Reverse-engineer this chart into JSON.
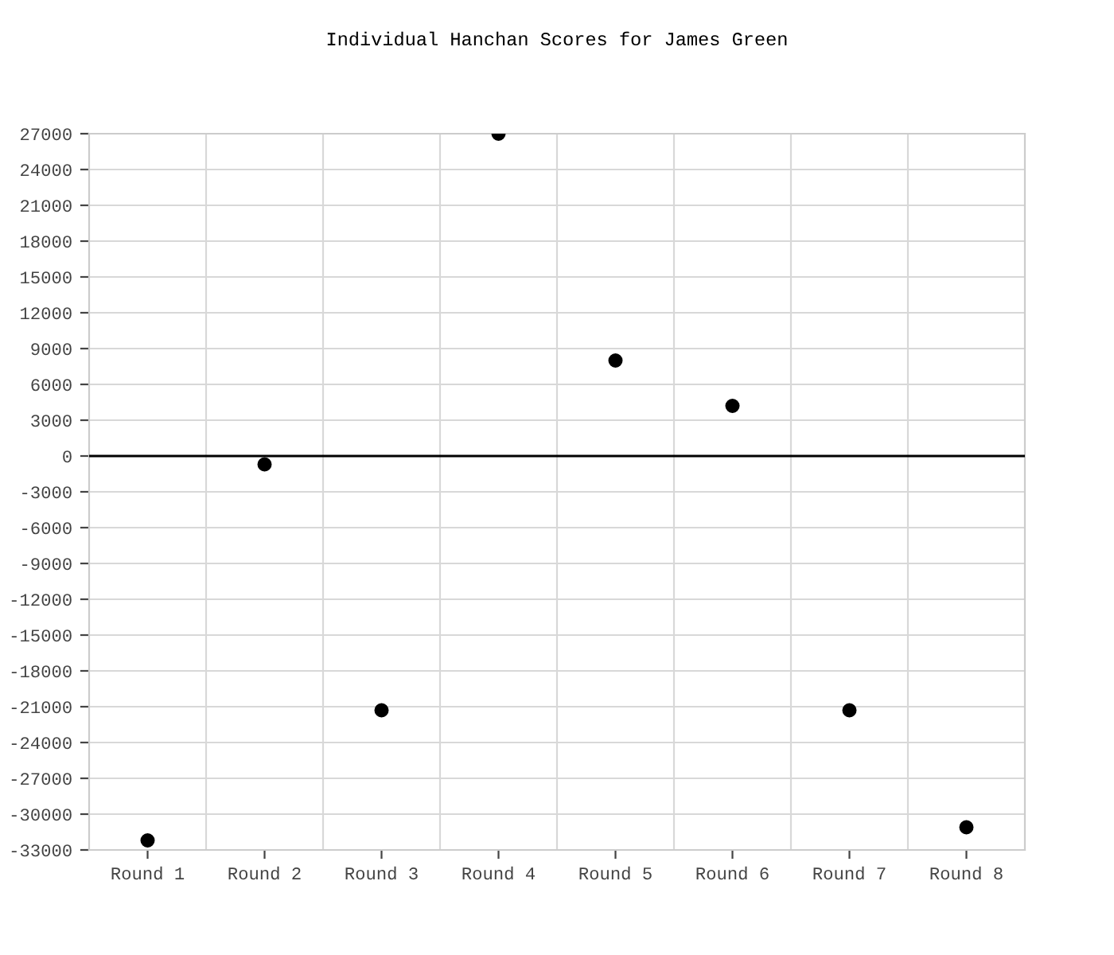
{
  "chart_data": {
    "type": "scatter",
    "title": "Individual Hanchan Scores for James Green",
    "categories": [
      "Round 1",
      "Round 2",
      "Round 3",
      "Round 4",
      "Round 5",
      "Round 6",
      "Round 7",
      "Round 8"
    ],
    "series": [
      {
        "color": "#000000",
        "values": [
          -32200,
          -700,
          -21300,
          27000,
          8000,
          4200,
          -21300,
          -31100
        ]
      }
    ],
    "ylim": [
      -33000,
      27000
    ],
    "yticks": [
      -33000,
      -30000,
      -27000,
      -24000,
      -21000,
      -18000,
      -15000,
      -12000,
      -9000,
      -6000,
      -3000,
      0,
      3000,
      6000,
      9000,
      12000,
      15000,
      18000,
      21000,
      24000,
      27000
    ],
    "ref_lines": [
      {
        "axis": "y",
        "value": 0,
        "color": "#000000"
      }
    ],
    "grid": true,
    "marker": "circle"
  }
}
